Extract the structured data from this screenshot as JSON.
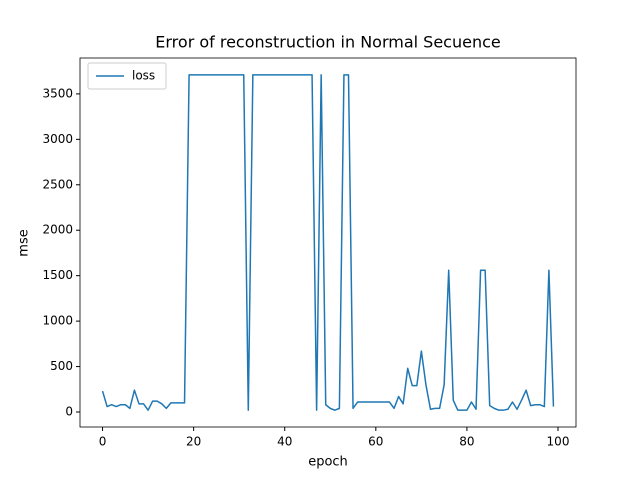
{
  "chart_data": {
    "type": "line",
    "title": "Error of reconstruction in Normal Secuence",
    "x_label": "epoch",
    "y_label": "mse",
    "x": [
      0,
      1,
      2,
      3,
      4,
      5,
      6,
      7,
      8,
      9,
      10,
      11,
      12,
      13,
      14,
      15,
      16,
      17,
      18,
      19,
      20,
      21,
      22,
      23,
      24,
      25,
      26,
      27,
      28,
      29,
      30,
      31,
      32,
      33,
      34,
      35,
      36,
      37,
      38,
      39,
      40,
      41,
      42,
      43,
      44,
      45,
      46,
      47,
      48,
      49,
      50,
      51,
      52,
      53,
      54,
      55,
      56,
      57,
      58,
      59,
      60,
      61,
      62,
      63,
      64,
      65,
      66,
      67,
      68,
      69,
      70,
      71,
      72,
      73,
      74,
      75,
      76,
      77,
      78,
      79,
      80,
      81,
      82,
      83,
      84,
      85,
      86,
      87,
      88,
      89,
      90,
      91,
      92,
      93,
      94,
      95,
      96,
      97,
      98,
      99
    ],
    "series": [
      {
        "name": "loss",
        "color": "#1f77b4",
        "values": [
          230,
          60,
          80,
          60,
          80,
          80,
          40,
          240,
          90,
          90,
          20,
          120,
          120,
          90,
          40,
          100,
          100,
          100,
          100,
          3710,
          3710,
          3710,
          3710,
          3710,
          3710,
          3710,
          3710,
          3710,
          3710,
          3710,
          3710,
          3710,
          20,
          3710,
          3710,
          3710,
          3710,
          3710,
          3710,
          3710,
          3710,
          3710,
          3710,
          3710,
          3710,
          3710,
          3710,
          20,
          3710,
          80,
          40,
          20,
          40,
          3710,
          3710,
          40,
          110,
          110,
          110,
          110,
          110,
          110,
          110,
          110,
          40,
          170,
          90,
          480,
          290,
          290,
          670,
          300,
          30,
          40,
          40,
          300,
          1560,
          130,
          20,
          20,
          20,
          110,
          30,
          1560,
          1560,
          70,
          40,
          20,
          20,
          30,
          110,
          30,
          130,
          240,
          70,
          80,
          80,
          60,
          1560,
          60
        ]
      }
    ],
    "xlim": [
      -4.95,
      103.95
    ],
    "ylim": [
      -165,
      3895
    ],
    "xticks": [
      0,
      20,
      40,
      60,
      80,
      100
    ],
    "yticks": [
      0,
      500,
      1000,
      1500,
      2000,
      2500,
      3000,
      3500
    ],
    "legend": "upper left",
    "grid": false
  }
}
